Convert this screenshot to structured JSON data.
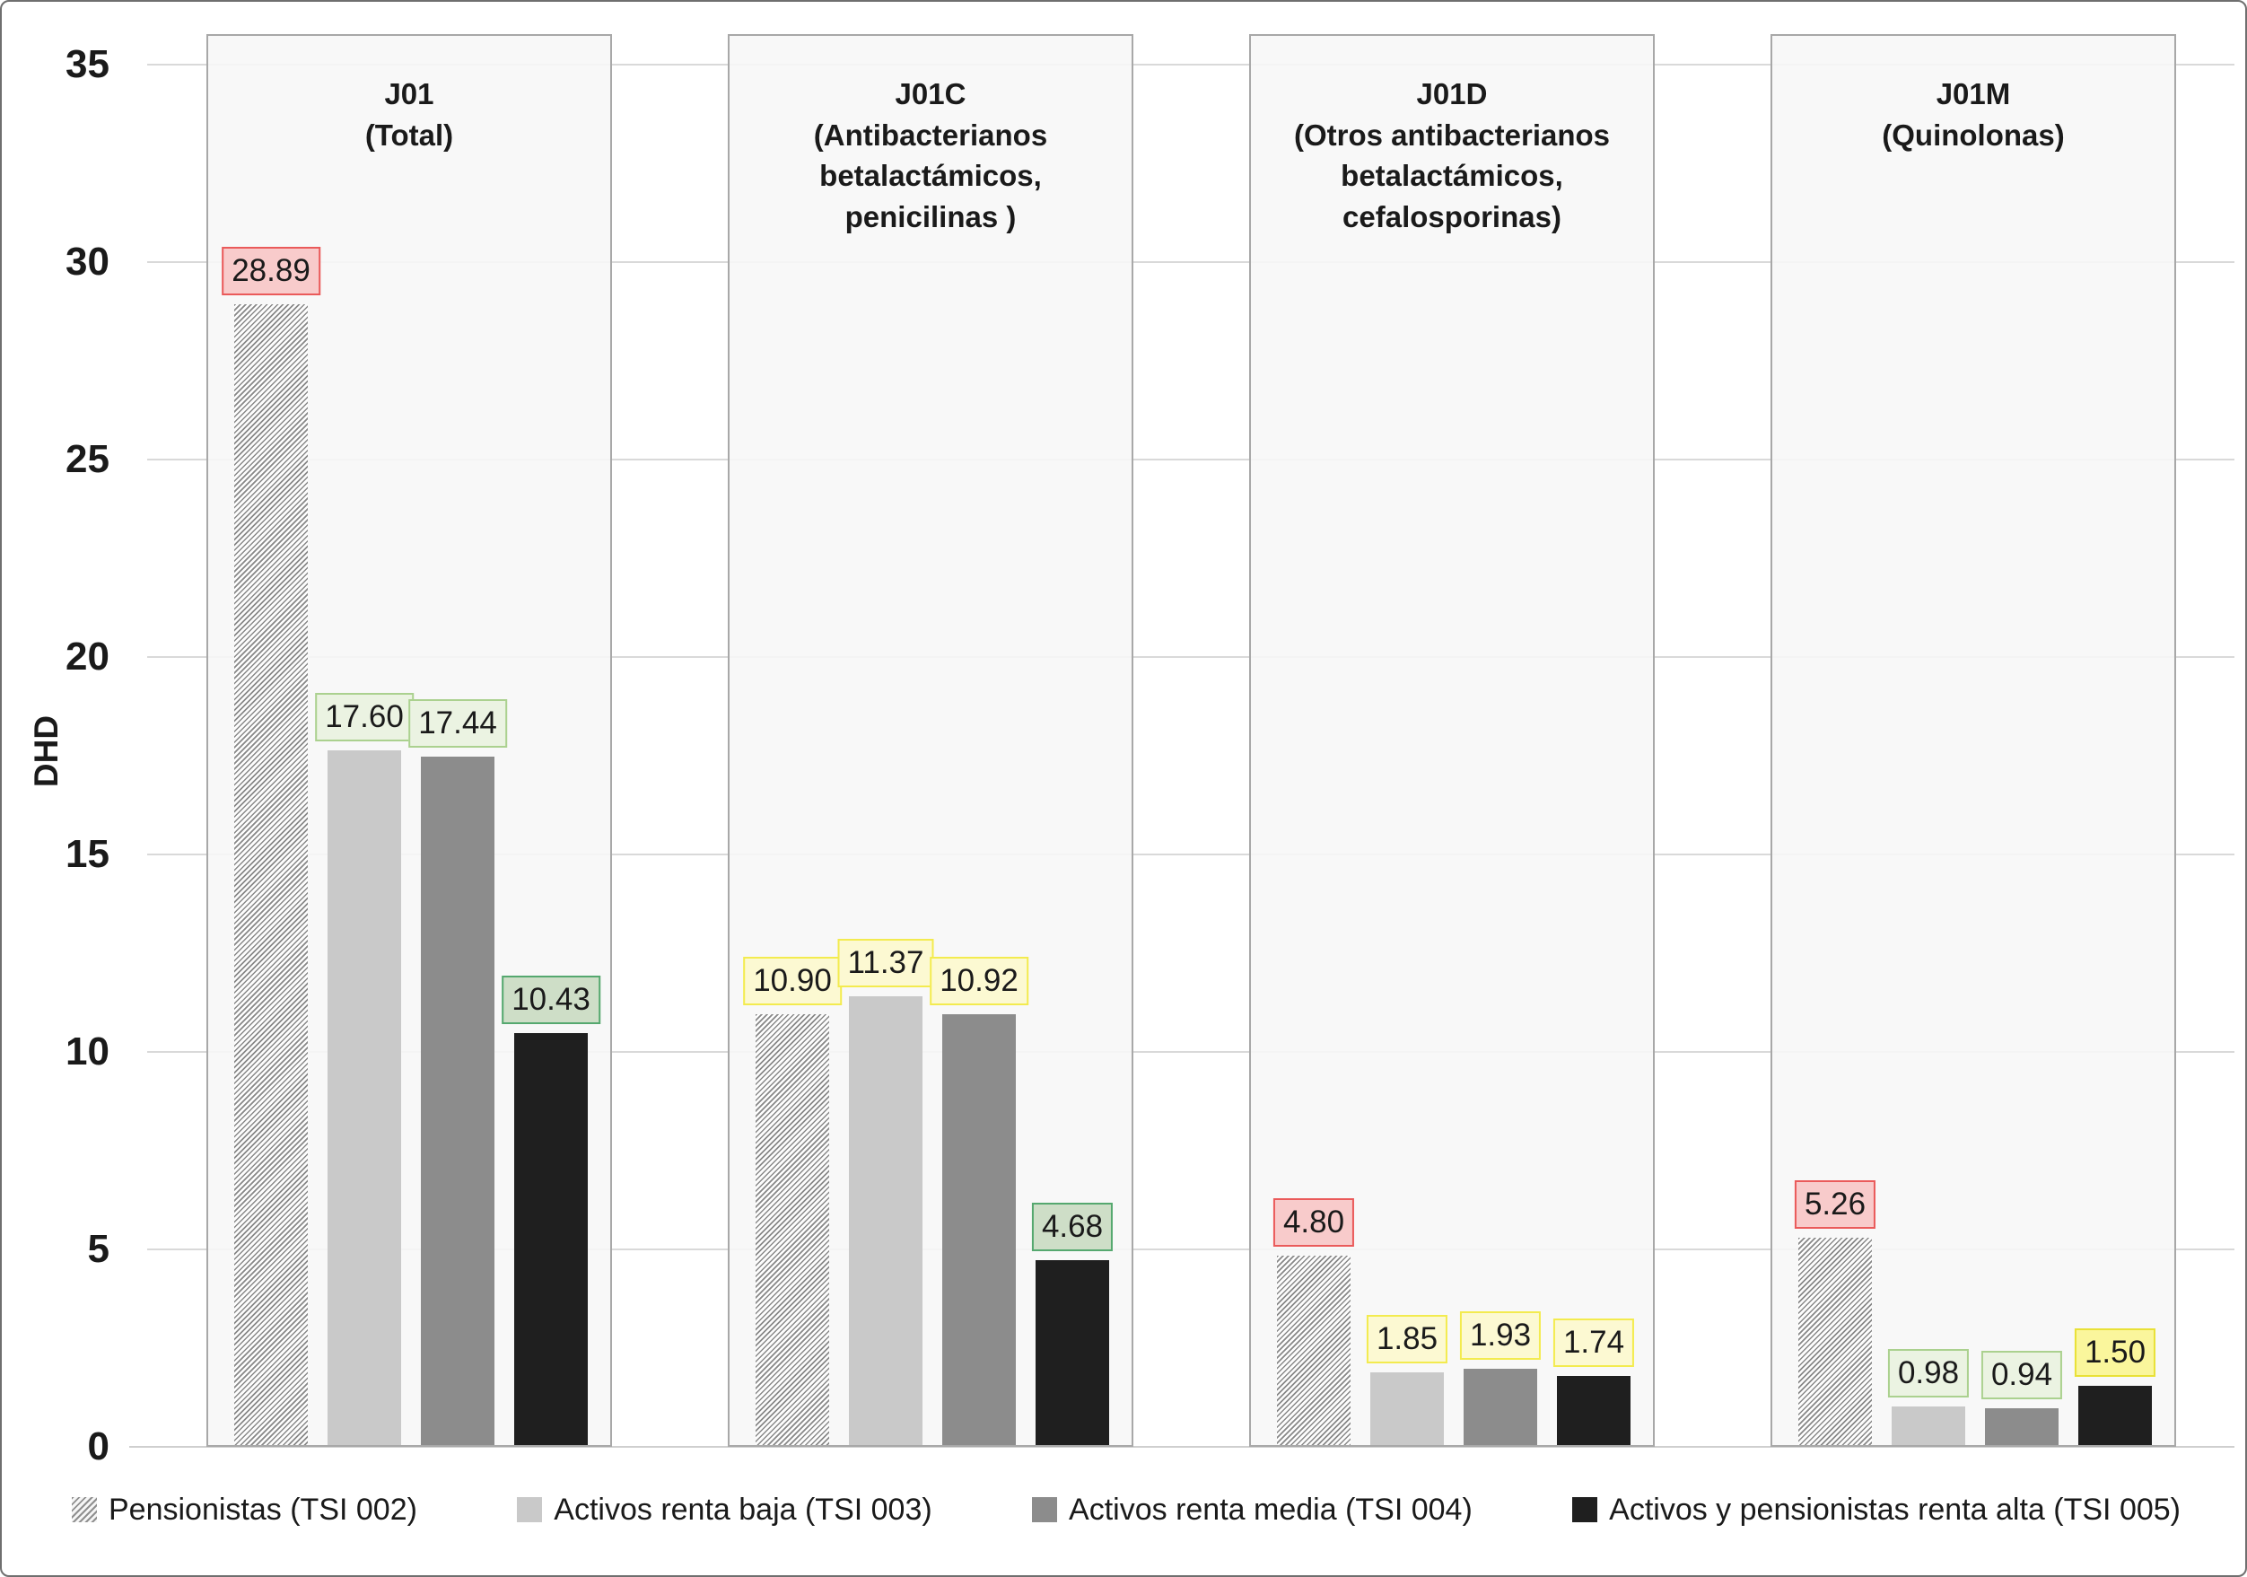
{
  "chart_data": {
    "type": "bar",
    "title": "",
    "ylabel": "DHD",
    "ylim": [
      0,
      35
    ],
    "yticks": [
      0,
      5,
      10,
      15,
      20,
      25,
      30,
      35
    ],
    "grid": true,
    "legend_position": "bottom",
    "series": [
      {
        "name": "Pensionistas (TSI 002)",
        "fill": "hatch",
        "color": "#a6a6a6"
      },
      {
        "name": "Activos renta baja (TSI 003)",
        "fill": "solid",
        "color": "#c9c9c9"
      },
      {
        "name": "Activos renta media (TSI 004)",
        "fill": "solid",
        "color": "#8c8c8c"
      },
      {
        "name": "Activos y pensionistas renta alta (TSI 005)",
        "fill": "solid",
        "color": "#1f1f1f"
      }
    ],
    "groups": [
      {
        "code": "J01",
        "subtitle": "(Total)",
        "values": [
          28.89,
          17.6,
          17.44,
          10.43
        ],
        "value_labels": [
          "28.89",
          "17.60",
          "17.44",
          "10.43"
        ],
        "label_styles": [
          "red",
          "lightgreen",
          "lightgreen",
          "green"
        ]
      },
      {
        "code": "J01C",
        "subtitle": "(Antibacterianos betalactámicos, penicilinas )",
        "values": [
          10.9,
          11.37,
          10.92,
          4.68
        ],
        "value_labels": [
          "10.90",
          "11.37",
          "10.92",
          "4.68"
        ],
        "label_styles": [
          "yellow",
          "yellow",
          "yellow",
          "green"
        ]
      },
      {
        "code": "J01D",
        "subtitle": "(Otros antibacterianos betalactámicos, cefalosporinas)",
        "values": [
          4.8,
          1.85,
          1.93,
          1.74
        ],
        "value_labels": [
          "4.80",
          "1.85",
          "1.93",
          "1.74"
        ],
        "label_styles": [
          "red",
          "yellow",
          "yellow",
          "yellow"
        ]
      },
      {
        "code": "J01M",
        "subtitle": "(Quinolonas)",
        "values": [
          5.26,
          0.98,
          0.94,
          1.5
        ],
        "value_labels": [
          "5.26",
          "0.98",
          "0.94",
          "1.50"
        ],
        "label_styles": [
          "red",
          "lightgreen",
          "lightgreen",
          "yellow_strong"
        ]
      }
    ],
    "label_palette": {
      "red": {
        "bg": "#f8cbcb",
        "border": "#ea5a5a"
      },
      "lightgreen": {
        "bg": "#ebf3e2",
        "border": "#abd18f"
      },
      "green": {
        "bg": "#cedec7",
        "border": "#55a86f"
      },
      "yellow": {
        "bg": "#fcf9d2",
        "border": "#f3eb4f"
      },
      "yellow_strong": {
        "bg": "#faf69c",
        "border": "#e9e137"
      }
    }
  }
}
